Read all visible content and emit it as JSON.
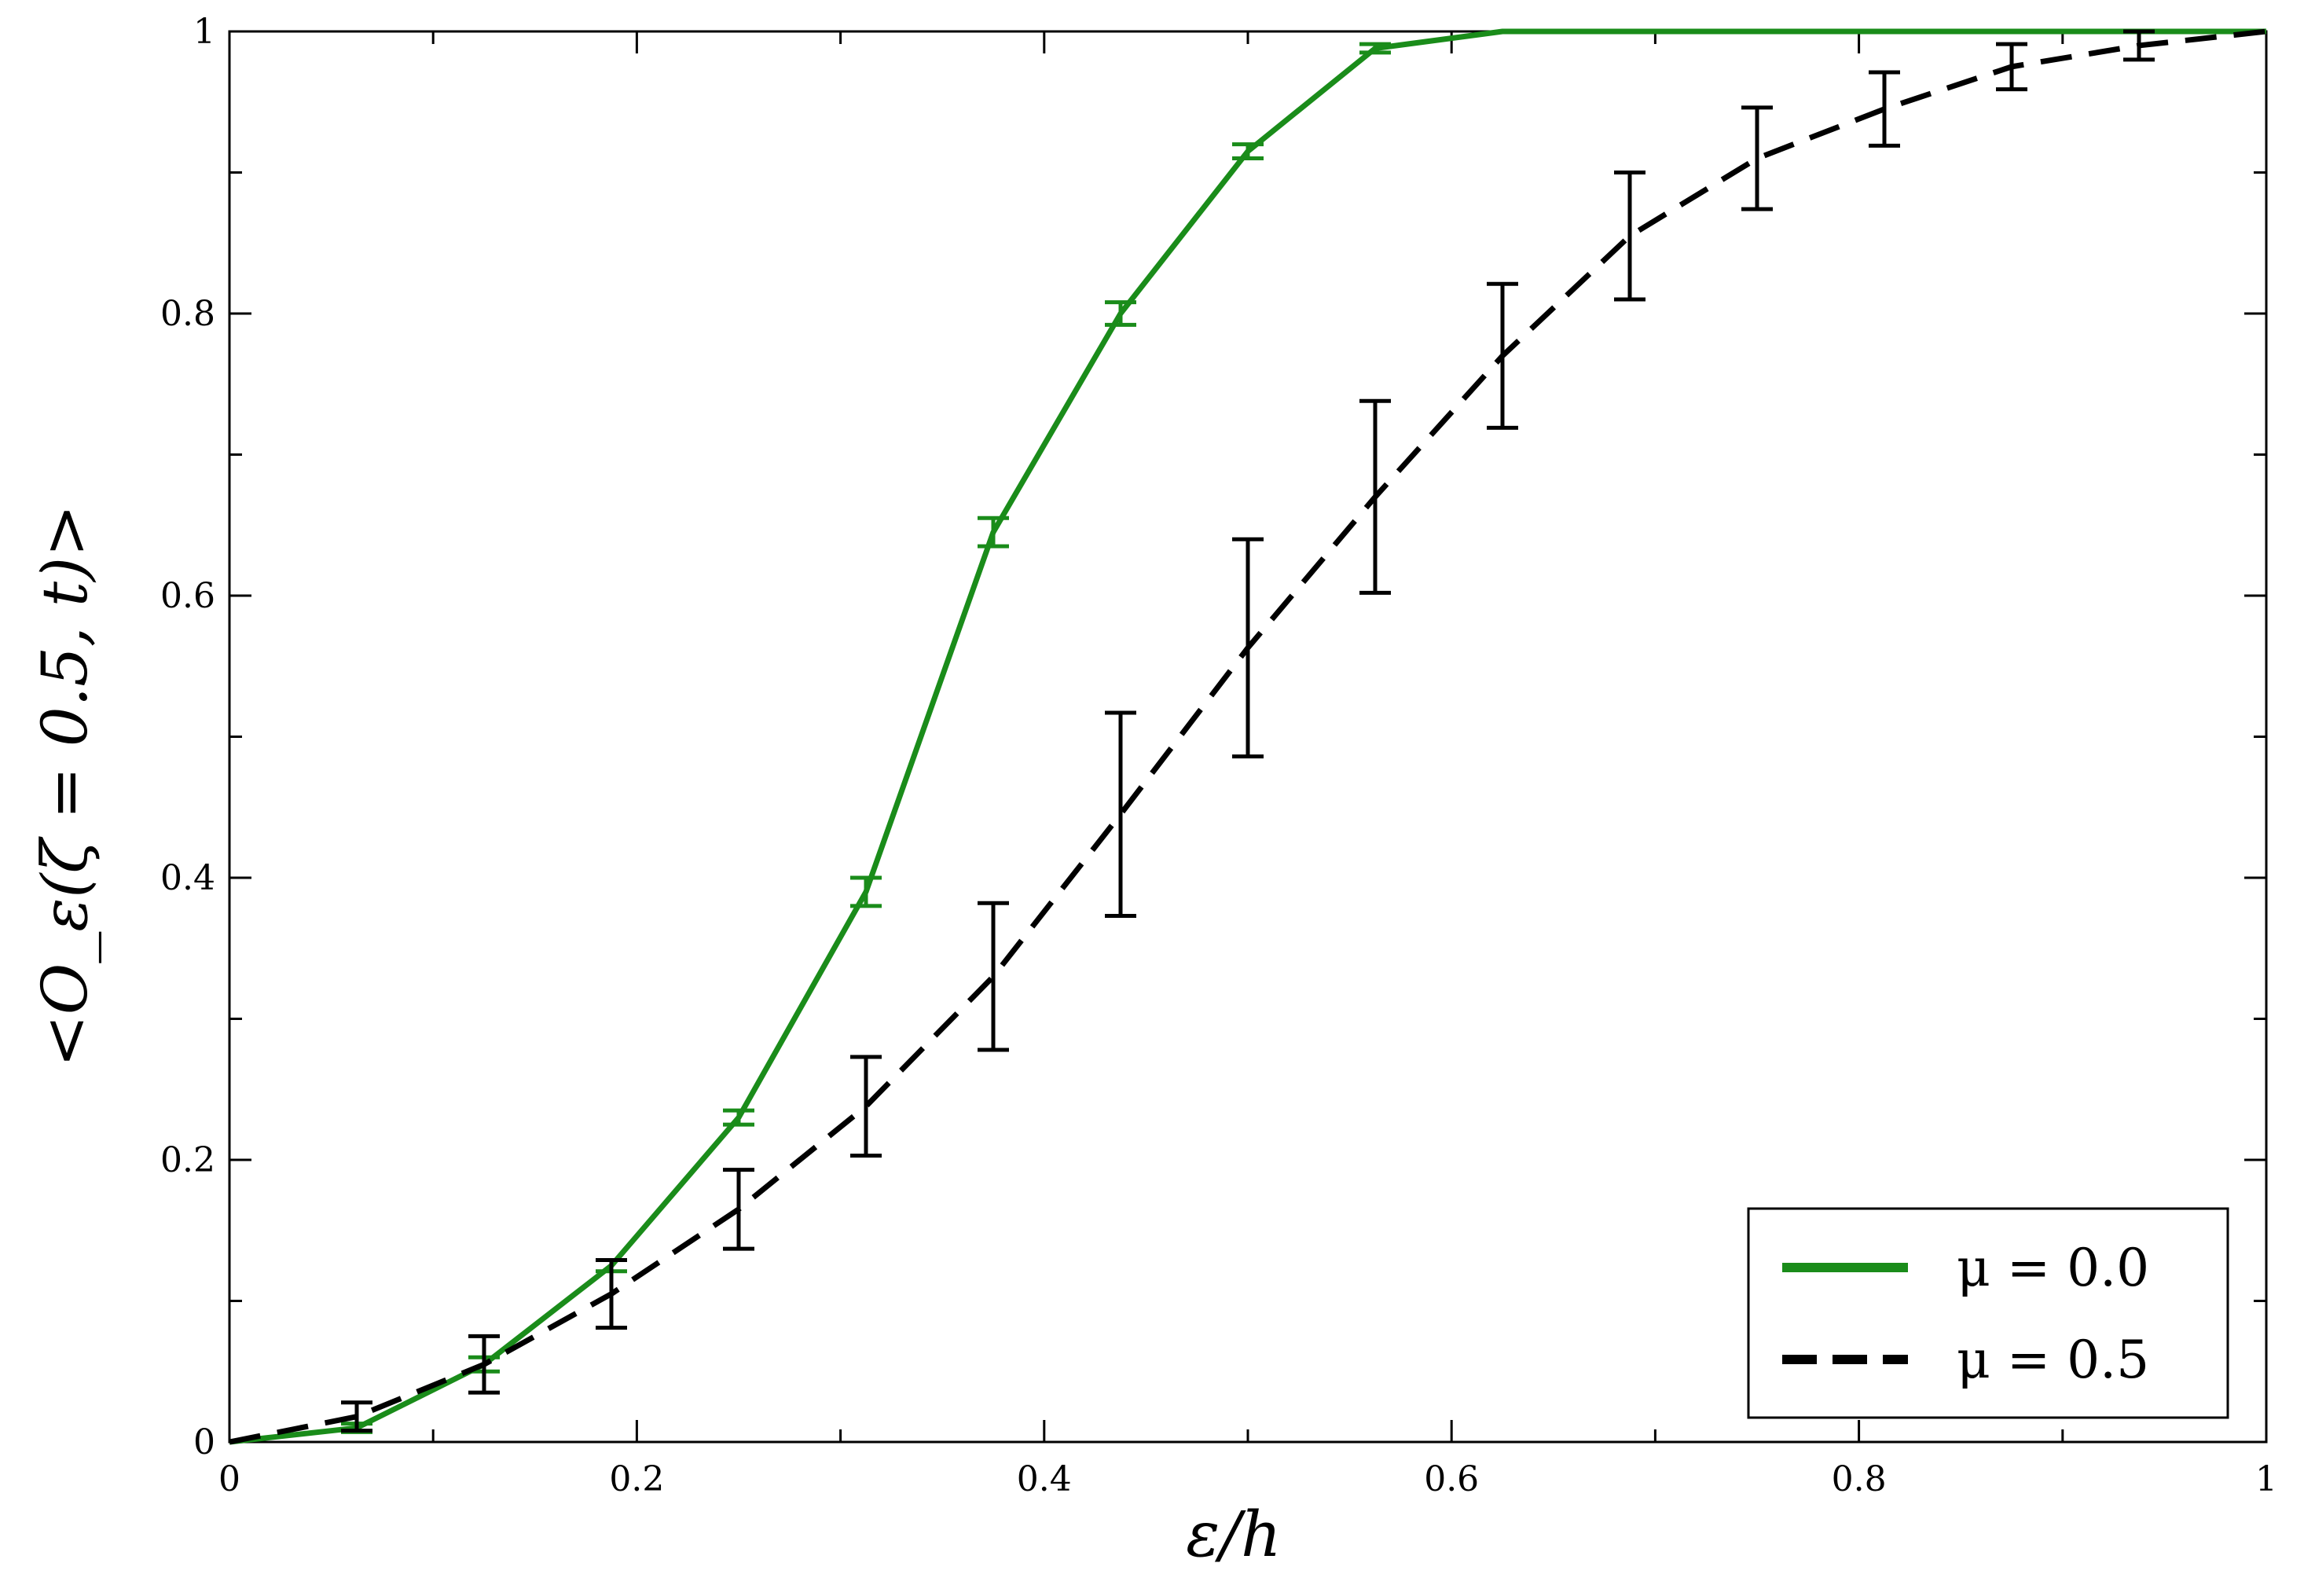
{
  "chart_data": {
    "type": "line",
    "xlabel": "ε/h",
    "ylabel": "<O_ε(ζ = 0.5, t)>",
    "xlim": [
      0,
      1
    ],
    "ylim": [
      0,
      1
    ],
    "xticks": [
      "0",
      "0.2",
      "0.4",
      "0.6",
      "0.8",
      "1"
    ],
    "yticks": [
      "0",
      "0.2",
      "0.4",
      "0.6",
      "0.8",
      "1"
    ],
    "grid": false,
    "legend_position": "bottom-right",
    "series": [
      {
        "name": "μ = 0.0",
        "color": "#1a8c1a",
        "style": "solid",
        "x": [
          0,
          0.0625,
          0.125,
          0.1875,
          0.25,
          0.3125,
          0.375,
          0.4375,
          0.5,
          0.5625,
          0.625,
          0.6875,
          0.75,
          0.8125,
          0.875,
          0.9375,
          1.0
        ],
        "y": [
          0,
          0.01,
          0.055,
          0.125,
          0.23,
          0.39,
          0.645,
          0.8,
          0.915,
          0.988,
          1.0,
          1.0,
          1.0,
          1.0,
          1.0,
          1.0,
          1.0
        ],
        "err": [
          0,
          0.003,
          0.005,
          0.004,
          0.005,
          0.01,
          0.01,
          0.008,
          0.005,
          0.003,
          0,
          0,
          0,
          0,
          0,
          0,
          0
        ]
      },
      {
        "name": "μ = 0.5",
        "color": "#000000",
        "style": "dashed",
        "x": [
          0,
          0.0625,
          0.125,
          0.1875,
          0.25,
          0.3125,
          0.375,
          0.4375,
          0.5,
          0.5625,
          0.625,
          0.6875,
          0.75,
          0.8125,
          0.875,
          0.9375,
          1.0
        ],
        "y": [
          0,
          0.018,
          0.055,
          0.105,
          0.165,
          0.238,
          0.33,
          0.445,
          0.563,
          0.67,
          0.77,
          0.855,
          0.91,
          0.945,
          0.975,
          0.99,
          1.0
        ],
        "err": [
          0,
          0.01,
          0.02,
          0.024,
          0.028,
          0.035,
          0.052,
          0.072,
          0.077,
          0.068,
          0.051,
          0.045,
          0.036,
          0.026,
          0.016,
          0.01,
          0
        ]
      }
    ]
  }
}
